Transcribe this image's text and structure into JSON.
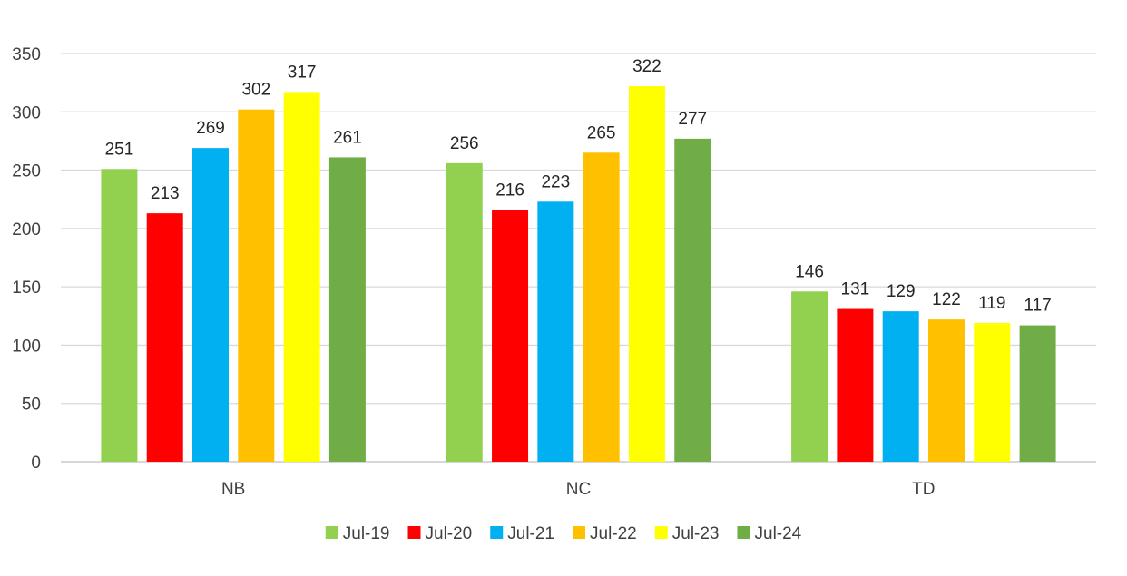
{
  "chart_data": {
    "type": "bar",
    "categories": [
      "NB",
      "NC",
      "TD"
    ],
    "series": [
      {
        "name": "Jul-19",
        "color": "#92D050",
        "values": [
          251,
          256,
          146
        ]
      },
      {
        "name": "Jul-20",
        "color": "#FF0000",
        "values": [
          213,
          216,
          131
        ]
      },
      {
        "name": "Jul-21",
        "color": "#00B0F0",
        "values": [
          269,
          223,
          129
        ]
      },
      {
        "name": "Jul-22",
        "color": "#FFC000",
        "values": [
          302,
          265,
          122
        ]
      },
      {
        "name": "Jul-23",
        "color": "#FFFF00",
        "values": [
          317,
          322,
          119
        ]
      },
      {
        "name": "Jul-24",
        "color": "#70AD47",
        "values": [
          261,
          277,
          117
        ]
      }
    ],
    "ylim": [
      0,
      350
    ],
    "yticks": [
      0,
      50,
      100,
      150,
      200,
      250,
      300,
      350
    ],
    "grid": true,
    "legend_position": "bottom",
    "data_labels": true
  }
}
